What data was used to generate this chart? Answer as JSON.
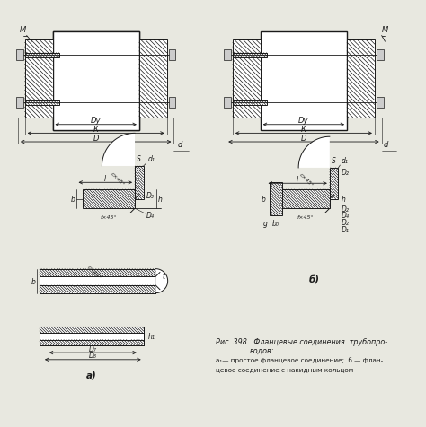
{
  "bg_color": "#e8e8e0",
  "line_color": "#1a1a1a",
  "figsize": [
    4.74,
    4.77
  ],
  "dpi": 100,
  "title_text": "Рис. 398.  Фланцевые соединения  трубопро-",
  "title_text2": "водов:",
  "caption1": "а₁— простое фланцевое соединение;  б — флан-",
  "caption2": "цевое соединение с накидным кольцом"
}
